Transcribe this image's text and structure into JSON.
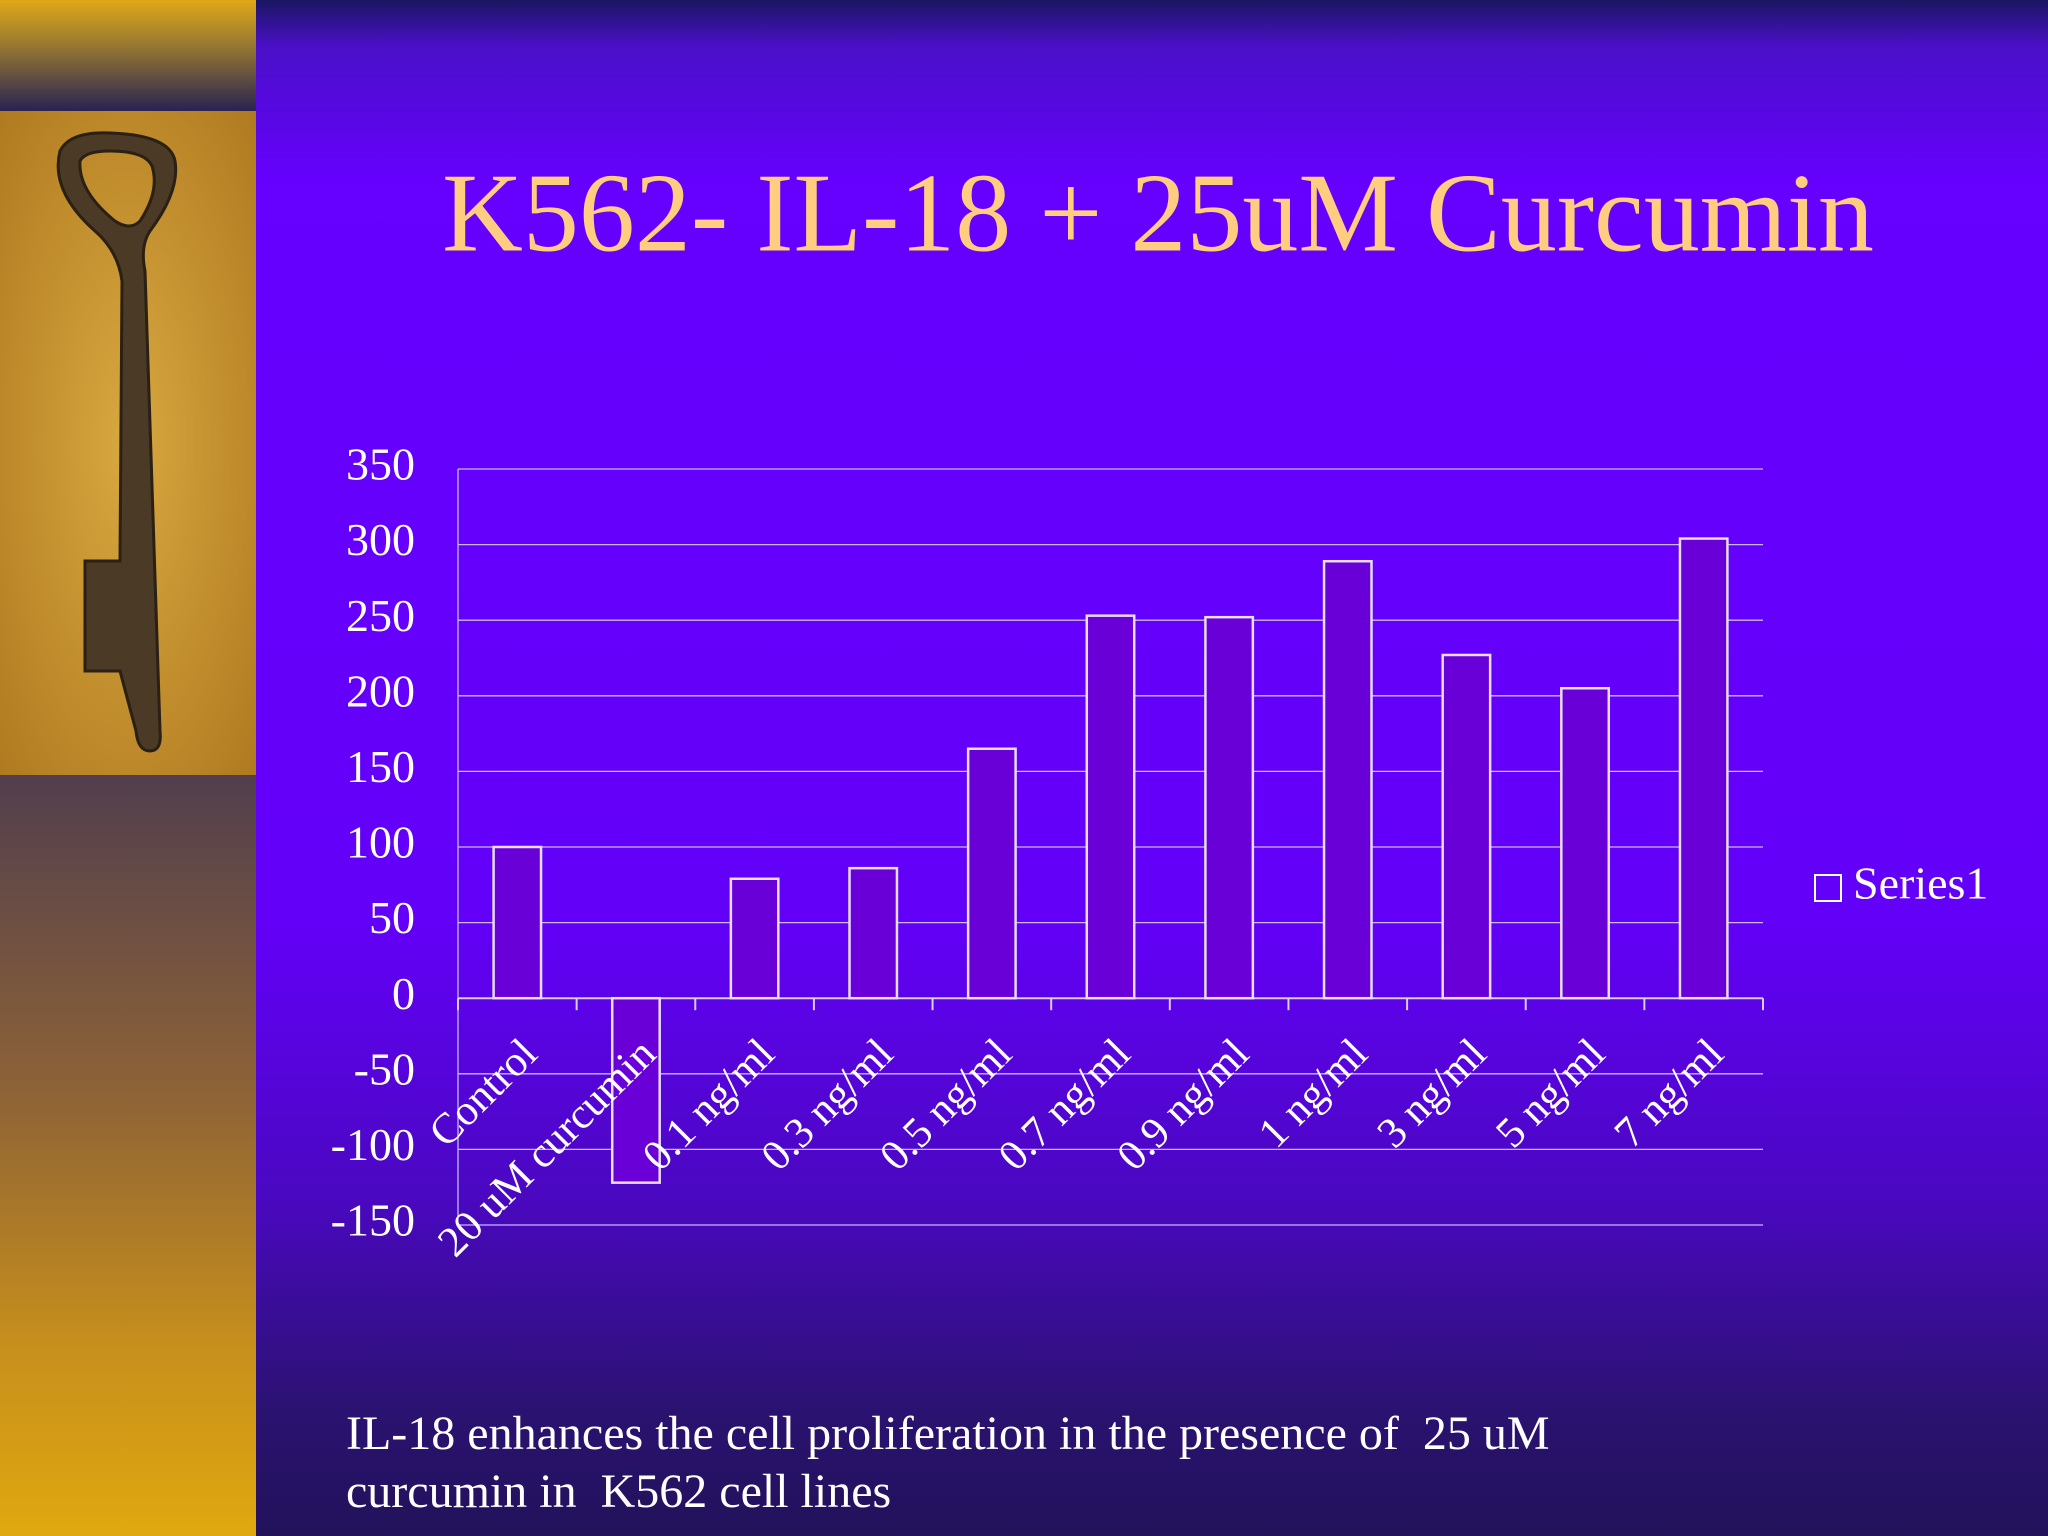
{
  "chart_data": {
    "type": "bar",
    "title": "K562- IL-18 + 25uM Curcumin",
    "categories": [
      "Control",
      "20 uM curcumin",
      "0.1 ng/ml",
      "0.3 ng/ml",
      "0.5 ng/ml",
      "0.7 ng/ml",
      "0.9 ng/ml",
      "1 ng/ml",
      "3 ng/ml",
      "5 ng/ml",
      "7 ng/ml"
    ],
    "series": [
      {
        "name": "Series1",
        "color": "#6a00d8",
        "values": [
          100,
          -122,
          79,
          86,
          165,
          253,
          252,
          289,
          227,
          205,
          304
        ]
      }
    ],
    "ylim": [
      -150,
      350
    ],
    "yticks": [
      -150,
      -100,
      -50,
      0,
      50,
      100,
      150,
      200,
      250,
      300,
      350
    ],
    "grid": true,
    "legend": "right",
    "caption": [
      "IL-18 enhances the cell proliferation in the presence of  25 uM",
      "curcumin in  K562 cell lines"
    ]
  }
}
